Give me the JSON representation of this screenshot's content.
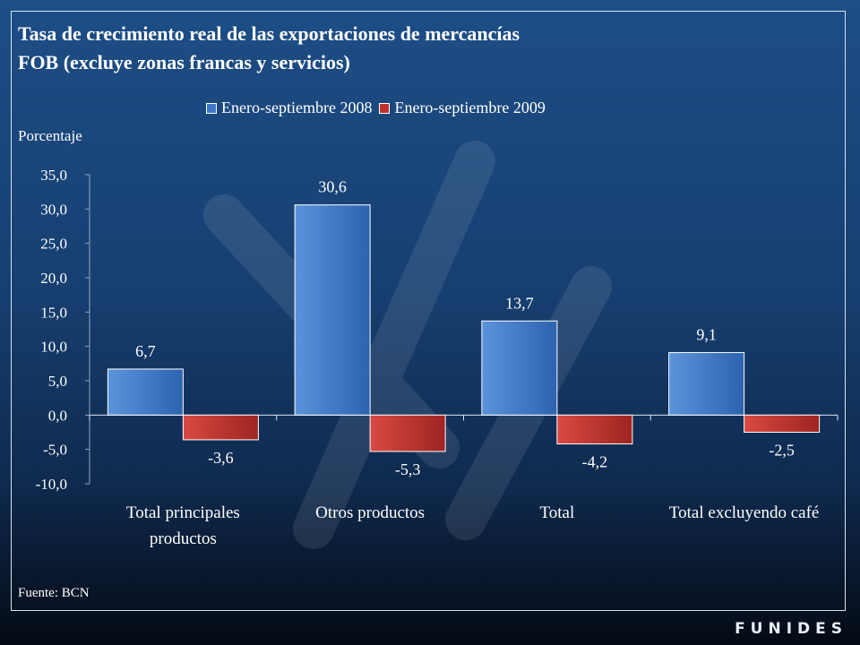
{
  "title_line1": "Tasa de crecimiento real de las exportaciones de mercancías",
  "title_line2": "FOB (excluye zonas francas y servicios)",
  "ylabel": "Porcentaje",
  "source": "Fuente: BCN",
  "brand": "FUNIDES",
  "colors": {
    "series1": "#3c78c8",
    "series2": "#c0322c"
  },
  "chart_data": {
    "type": "bar",
    "title": "Tasa de crecimiento real de las exportaciones de mercancías FOB (excluye zonas francas y servicios)",
    "ylabel": "Porcentaje",
    "xlabel": "",
    "ylim": [
      -10,
      35
    ],
    "yticks": [
      "35,0",
      "30,0",
      "25,0",
      "20,0",
      "15,0",
      "10,0",
      "5,0",
      "0,0",
      "-5,0",
      "-10,0"
    ],
    "categories": [
      [
        "Total principales",
        "productos"
      ],
      [
        "Otros productos"
      ],
      [
        "Total"
      ],
      [
        "Total excluyendo café"
      ]
    ],
    "series": [
      {
        "name": "Enero-septiembre 2008",
        "values": [
          6.7,
          30.6,
          13.7,
          9.1
        ],
        "labels": [
          "6,7",
          "30,6",
          "13,7",
          "9,1"
        ]
      },
      {
        "name": "Enero-septiembre 2009",
        "values": [
          -3.6,
          -5.3,
          -4.2,
          -2.5
        ],
        "labels": [
          "-3,6",
          "-5,3",
          "-4,2",
          "-2,5"
        ]
      }
    ],
    "legend_position": "top"
  }
}
